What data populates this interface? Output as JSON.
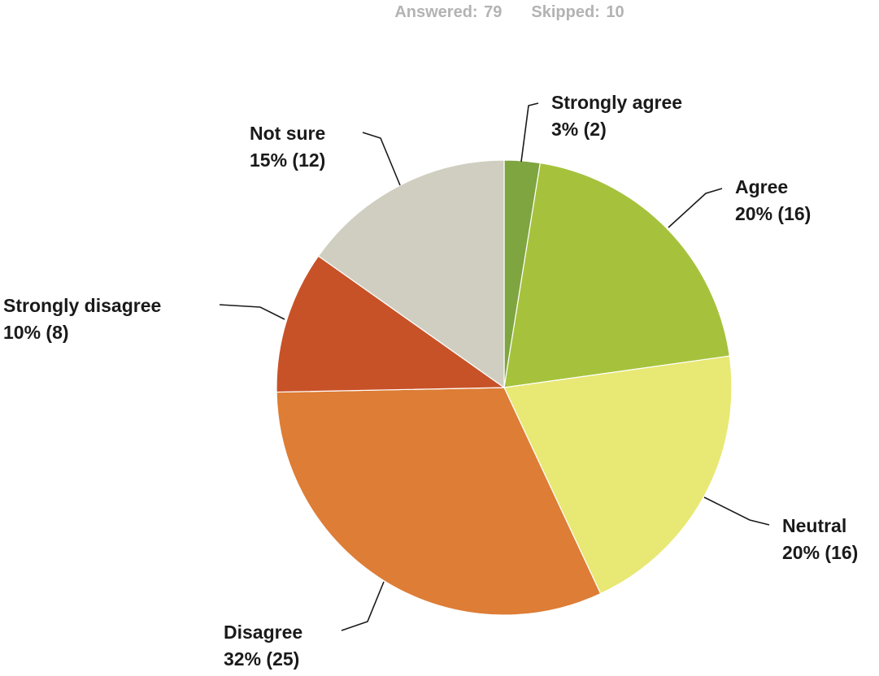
{
  "summary": {
    "answered_label": "Answered:",
    "answered_value": "79",
    "skipped_label": "Skipped:",
    "skipped_value": "10"
  },
  "chart_data": {
    "type": "pie",
    "title": "",
    "total": 79,
    "slices": [
      {
        "name": "Strongly agree",
        "percent_label": "3% (2)",
        "count": 2,
        "color": "#7fa540"
      },
      {
        "name": "Agree",
        "percent_label": "20% (16)",
        "count": 16,
        "color": "#a6c23c"
      },
      {
        "name": "Neutral",
        "percent_label": "20% (16)",
        "count": 16,
        "color": "#e8e874"
      },
      {
        "name": "Disagree",
        "percent_label": "32% (25)",
        "count": 25,
        "color": "#dd7d36"
      },
      {
        "name": "Strongly disagree",
        "percent_label": "10% (8)",
        "count": 8,
        "color": "#c85228"
      },
      {
        "name": "Not sure",
        "percent_label": "15% (12)",
        "count": 12,
        "color": "#d0cec0"
      }
    ],
    "start": "top",
    "direction": "clockwise",
    "legend": "none"
  }
}
